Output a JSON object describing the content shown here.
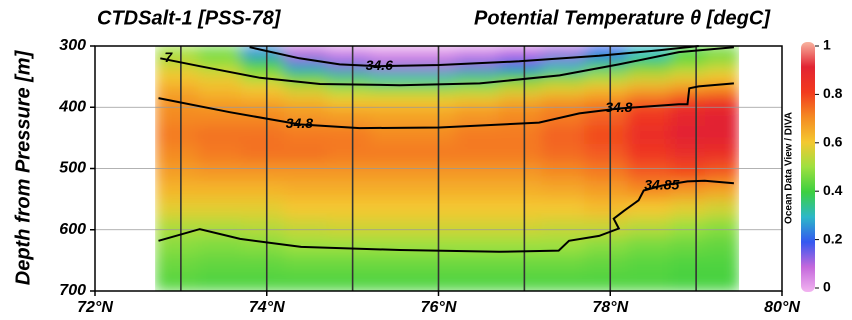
{
  "chart_data": {
    "type": "section",
    "title_left": "CTDSalt-1 [PSS-78]",
    "title_right": "Potential Temperature θ [degC]",
    "ylabel": "Depth from Pressure [m]",
    "watermark": "Ocean Data View / DIVA",
    "xlim": [
      72,
      80
    ],
    "xticks": [
      {
        "value": 72,
        "label": "72°N"
      },
      {
        "value": 74,
        "label": "74°N"
      },
      {
        "value": 76,
        "label": "76°N"
      },
      {
        "value": 78,
        "label": "78°N"
      },
      {
        "value": 80,
        "label": "80°N"
      }
    ],
    "ylim": [
      300,
      700
    ],
    "y_inverted": true,
    "yticks": [
      300,
      400,
      500,
      600,
      700
    ],
    "grid": true,
    "stations": [
      73,
      74,
      75,
      76,
      77,
      78,
      79
    ],
    "zlim": [
      0,
      1
    ],
    "zticks": [
      0,
      0.2,
      0.4,
      0.6,
      0.8,
      1
    ],
    "colormap": [
      "#f2b4f0",
      "#c468dc",
      "#3458f0",
      "#2cb8c8",
      "#3cd040",
      "#9ee040",
      "#f4c830",
      "#f48a22",
      "#f23a1e",
      "#e22432",
      "#f8b4a0"
    ],
    "xbins": [
      72.7,
      73.2,
      73.7,
      74.2,
      74.7,
      75.2,
      75.7,
      76.2,
      76.7,
      77.2,
      77.7,
      78.2,
      78.7,
      79.1,
      79.5
    ],
    "ybins": [
      300,
      320,
      340,
      360,
      380,
      400,
      430,
      460,
      490,
      520,
      550,
      580,
      610,
      640,
      670,
      700
    ],
    "z": [
      [
        0.5,
        0.45,
        0.25,
        0.1,
        0.05,
        0.03,
        0.03,
        0.05,
        0.08,
        0.12,
        0.2,
        0.3,
        0.4,
        0.45
      ],
      [
        0.55,
        0.5,
        0.4,
        0.25,
        0.15,
        0.12,
        0.12,
        0.15,
        0.2,
        0.28,
        0.35,
        0.42,
        0.48,
        0.52
      ],
      [
        0.6,
        0.58,
        0.5,
        0.42,
        0.35,
        0.32,
        0.32,
        0.35,
        0.4,
        0.45,
        0.5,
        0.55,
        0.58,
        0.6
      ],
      [
        0.65,
        0.62,
        0.6,
        0.55,
        0.5,
        0.48,
        0.48,
        0.5,
        0.55,
        0.58,
        0.62,
        0.65,
        0.68,
        0.7
      ],
      [
        0.68,
        0.66,
        0.65,
        0.63,
        0.6,
        0.6,
        0.6,
        0.62,
        0.65,
        0.68,
        0.7,
        0.75,
        0.8,
        0.82
      ],
      [
        0.7,
        0.7,
        0.7,
        0.68,
        0.67,
        0.66,
        0.66,
        0.68,
        0.7,
        0.72,
        0.75,
        0.82,
        0.88,
        0.9
      ],
      [
        0.72,
        0.73,
        0.73,
        0.72,
        0.72,
        0.7,
        0.7,
        0.72,
        0.72,
        0.75,
        0.78,
        0.85,
        0.9,
        0.9
      ],
      [
        0.7,
        0.72,
        0.73,
        0.73,
        0.72,
        0.72,
        0.72,
        0.72,
        0.72,
        0.74,
        0.76,
        0.82,
        0.86,
        0.85
      ],
      [
        0.67,
        0.68,
        0.68,
        0.68,
        0.68,
        0.68,
        0.68,
        0.68,
        0.68,
        0.7,
        0.72,
        0.76,
        0.78,
        0.76
      ],
      [
        0.63,
        0.63,
        0.63,
        0.64,
        0.64,
        0.64,
        0.64,
        0.64,
        0.64,
        0.65,
        0.67,
        0.7,
        0.68,
        0.66
      ],
      [
        0.58,
        0.58,
        0.58,
        0.6,
        0.6,
        0.6,
        0.6,
        0.6,
        0.6,
        0.6,
        0.62,
        0.6,
        0.58,
        0.56
      ],
      [
        0.52,
        0.52,
        0.53,
        0.55,
        0.56,
        0.56,
        0.56,
        0.56,
        0.56,
        0.55,
        0.55,
        0.53,
        0.5,
        0.48
      ],
      [
        0.48,
        0.47,
        0.48,
        0.5,
        0.5,
        0.5,
        0.5,
        0.5,
        0.5,
        0.5,
        0.48,
        0.46,
        0.45,
        0.44
      ],
      [
        0.45,
        0.44,
        0.44,
        0.45,
        0.45,
        0.45,
        0.45,
        0.45,
        0.45,
        0.45,
        0.44,
        0.43,
        0.42,
        0.42
      ],
      [
        0.43,
        0.42,
        0.42,
        0.42,
        0.42,
        0.42,
        0.42,
        0.42,
        0.42,
        0.42,
        0.42,
        0.42,
        0.41,
        0.41
      ]
    ],
    "contours": [
      {
        "labels": [
          "7"
        ],
        "x": [
          72.76,
          73.22,
          73.92,
          74.62,
          75.55,
          76.48,
          77.41,
          78.1,
          78.8,
          79.44
        ],
        "y": [
          320,
          333,
          352,
          362,
          364,
          361,
          348,
          330,
          310,
          302
        ]
      },
      {
        "labels": [
          "34.6"
        ],
        "x": [
          73.8,
          74.38,
          74.85,
          75.31,
          76.01,
          76.94,
          77.87,
          78.57,
          79.03
        ],
        "y": [
          302,
          320,
          330,
          333,
          331,
          325,
          316,
          307,
          300
        ]
      },
      {
        "labels": [
          "34.8",
          "34.8"
        ],
        "x": [
          72.74,
          73.57,
          74.38,
          75.08,
          76.01,
          77.17,
          77.64,
          78.1,
          78.8,
          78.9,
          78.92,
          79.03,
          79.44
        ],
        "y": [
          385,
          408,
          428,
          434,
          433,
          425,
          410,
          402,
          395,
          395,
          369,
          366,
          361
        ]
      },
      {
        "labels": [
          "34.85"
        ],
        "x": [
          72.74,
          73.22,
          73.69,
          74.4,
          75.55,
          76.71,
          77.4,
          77.52,
          77.87,
          78.1,
          78.04,
          78.16,
          78.33,
          78.39,
          78.6,
          78.9,
          79.1,
          79.44
        ],
        "y": [
          618,
          599,
          615,
          628,
          633,
          636,
          634,
          618,
          610,
          598,
          582,
          569,
          552,
          536,
          528,
          521,
          520,
          524
        ]
      }
    ]
  }
}
